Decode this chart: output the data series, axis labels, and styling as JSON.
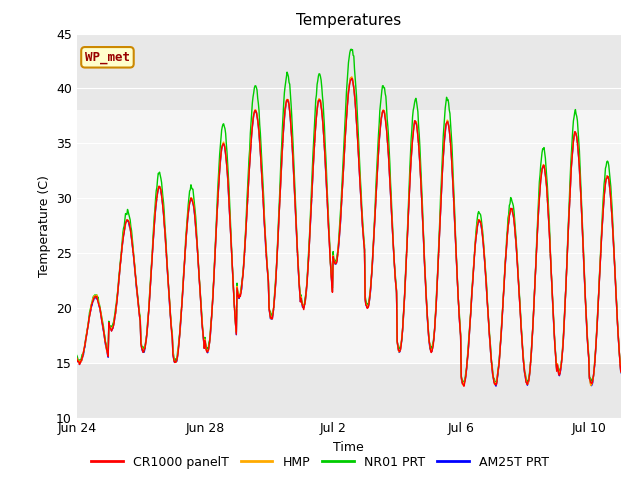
{
  "title": "Temperatures",
  "xlabel": "Time",
  "ylabel": "Temperature (C)",
  "ylim": [
    10,
    45
  ],
  "yticks": [
    10,
    15,
    20,
    25,
    30,
    35,
    40,
    45
  ],
  "background_color": "#ffffff",
  "plot_bg_color": "#e8e8e8",
  "shaded_band_color": "#f5f5f5",
  "shaded_band": [
    15,
    38
  ],
  "annotation_text": "WP_met",
  "annotation_bg": "#ffffcc",
  "annotation_border": "#cc8800",
  "annotation_text_color": "#990000",
  "legend_labels": [
    "CR1000 panelT",
    "HMP",
    "NR01 PRT",
    "AM25T PRT"
  ],
  "legend_colors": [
    "#ff0000",
    "#ffaa00",
    "#00cc00",
    "#0000ff"
  ],
  "x_tick_labels": [
    "Jun 24",
    "Jun 28",
    "Jul 2",
    "Jul 6",
    "Jul 10"
  ],
  "x_tick_positions": [
    0,
    4,
    8,
    12,
    16
  ],
  "total_days": 17,
  "line_width": 1.0,
  "day_maxes": [
    21,
    28,
    31,
    30,
    35,
    38,
    39,
    39,
    41,
    38,
    37,
    37,
    28,
    29,
    33,
    36,
    32
  ],
  "day_mins": [
    15,
    18,
    16,
    15,
    16,
    21,
    19,
    20,
    24,
    20,
    16,
    16,
    13,
    13,
    13,
    14,
    13
  ]
}
